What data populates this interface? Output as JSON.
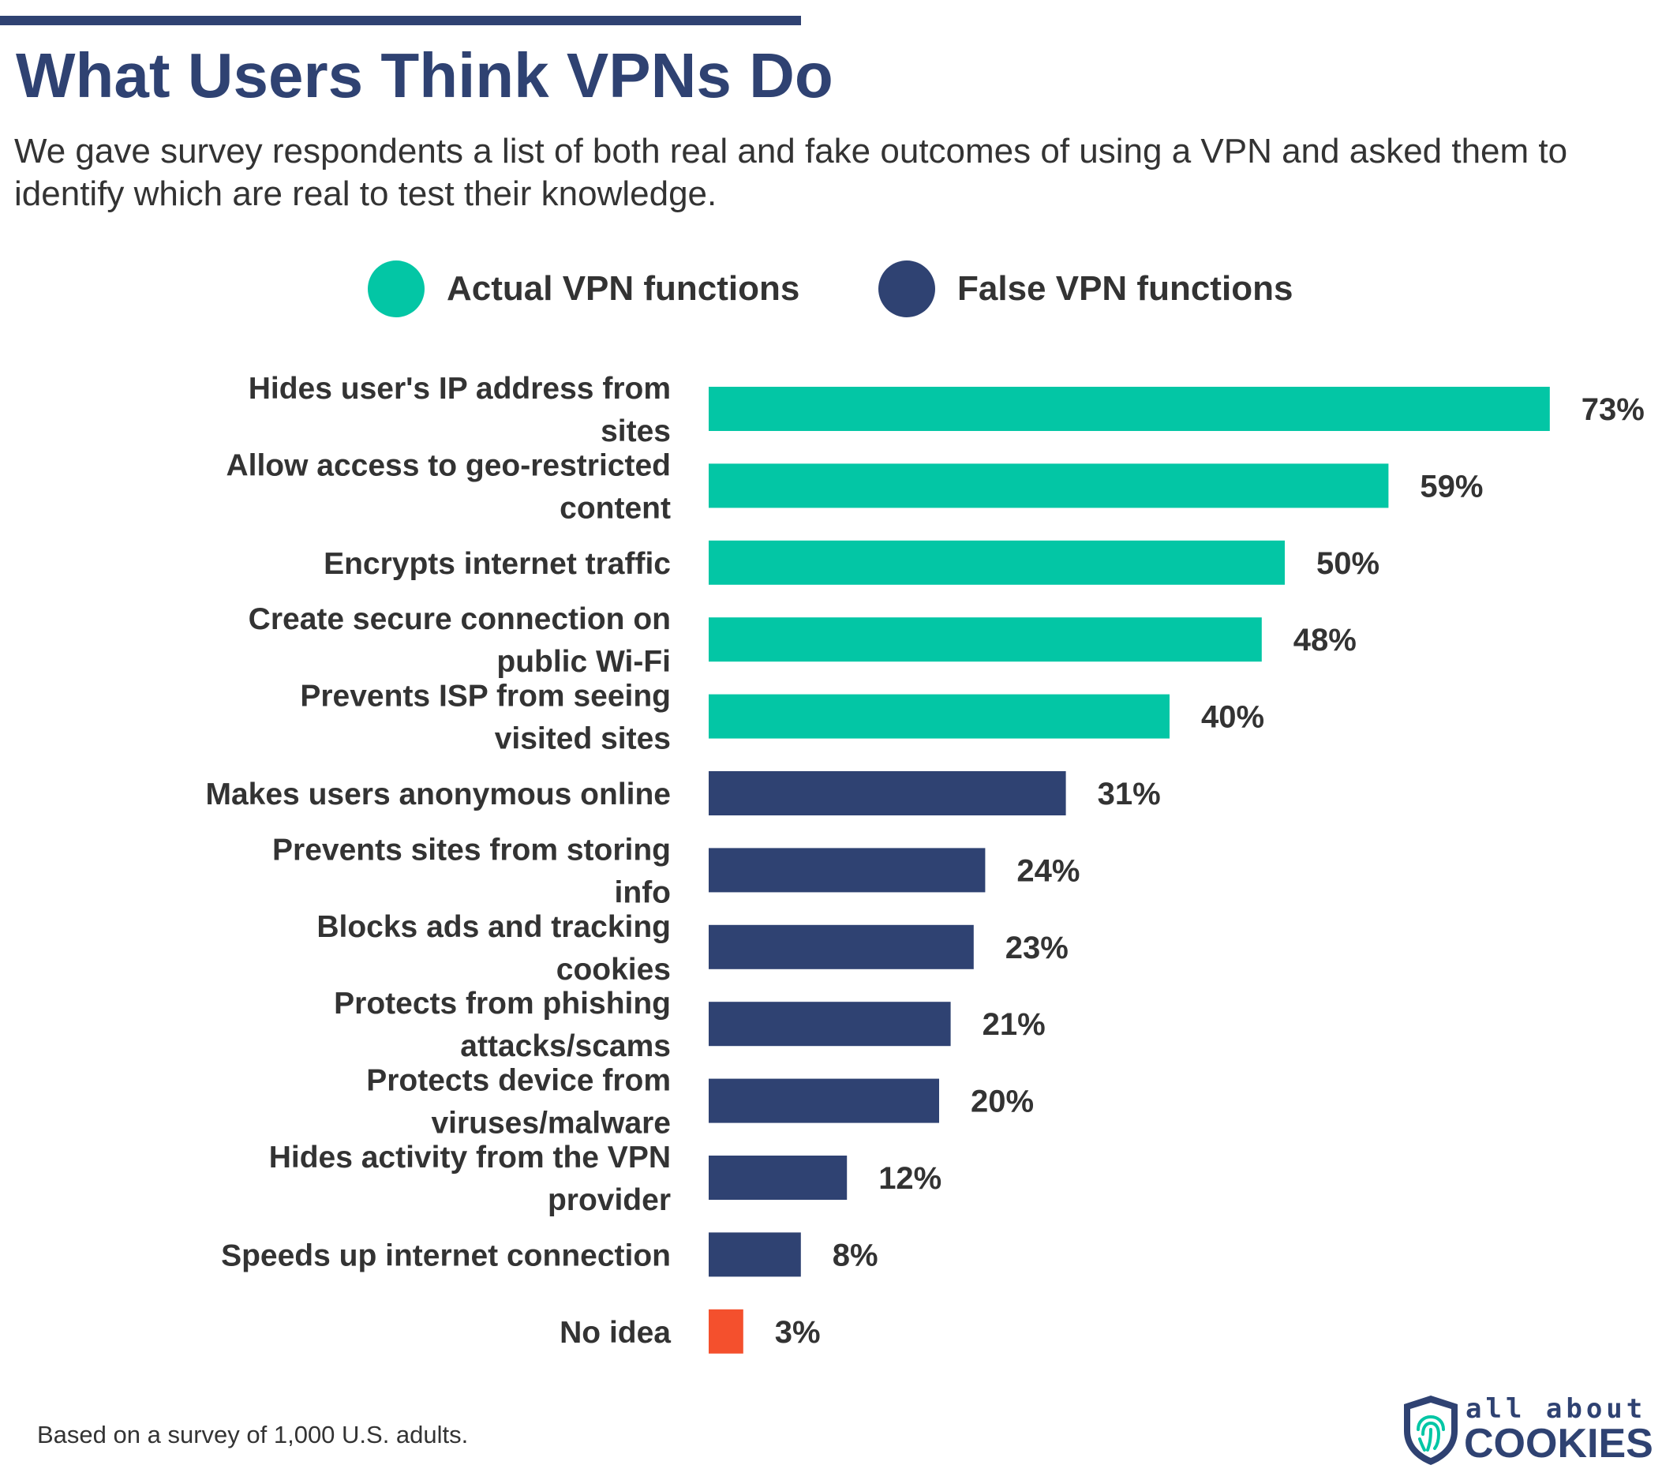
{
  "header": {
    "title": "What Users Think VPNs Do",
    "subtitle": "We gave survey respondents a list of both real and fake outcomes of using a VPN and asked them to identify which are real to test their knowledge."
  },
  "legend": {
    "actual_label": "Actual VPN functions",
    "false_label": "False VPN functions"
  },
  "colors": {
    "actual": "#03c6a5",
    "false": "#2f4272",
    "no_idea": "#f4502d",
    "text": "#333333"
  },
  "chart_data": {
    "type": "bar",
    "orientation": "horizontal",
    "title": "What Users Think VPNs Do",
    "xlabel": "",
    "ylabel": "",
    "xlim": [
      0,
      100
    ],
    "grid": false,
    "legend_position": "top",
    "categories": [
      "Hides user's IP address from sites",
      "Allow access to geo-restricted content",
      "Encrypts internet traffic",
      "Create secure connection on public Wi-Fi",
      "Prevents ISP from seeing visited sites",
      "Makes users anonymous online",
      "Prevents sites from storing info",
      "Blocks ads and tracking cookies",
      "Protects from phishing attacks/scams",
      "Protects device from viruses/malware",
      "Hides activity from the VPN provider",
      "Speeds up internet connection",
      "No idea"
    ],
    "values": [
      73,
      59,
      50,
      48,
      40,
      31,
      24,
      23,
      21,
      20,
      12,
      8,
      3
    ],
    "value_labels": [
      "73%",
      "59%",
      "50%",
      "48%",
      "40%",
      "31%",
      "24%",
      "23%",
      "21%",
      "20%",
      "12%",
      "8%",
      "3%"
    ],
    "groups": [
      "actual",
      "actual",
      "actual",
      "actual",
      "actual",
      "false",
      "false",
      "false",
      "false",
      "false",
      "false",
      "false",
      "no_idea"
    ]
  },
  "footer": {
    "note": "Based on a survey of 1,000 U.S. adults.",
    "logo_small": "all about",
    "logo_big": "COOKIES",
    "logo_icon": "shield-fingerprint-icon"
  }
}
